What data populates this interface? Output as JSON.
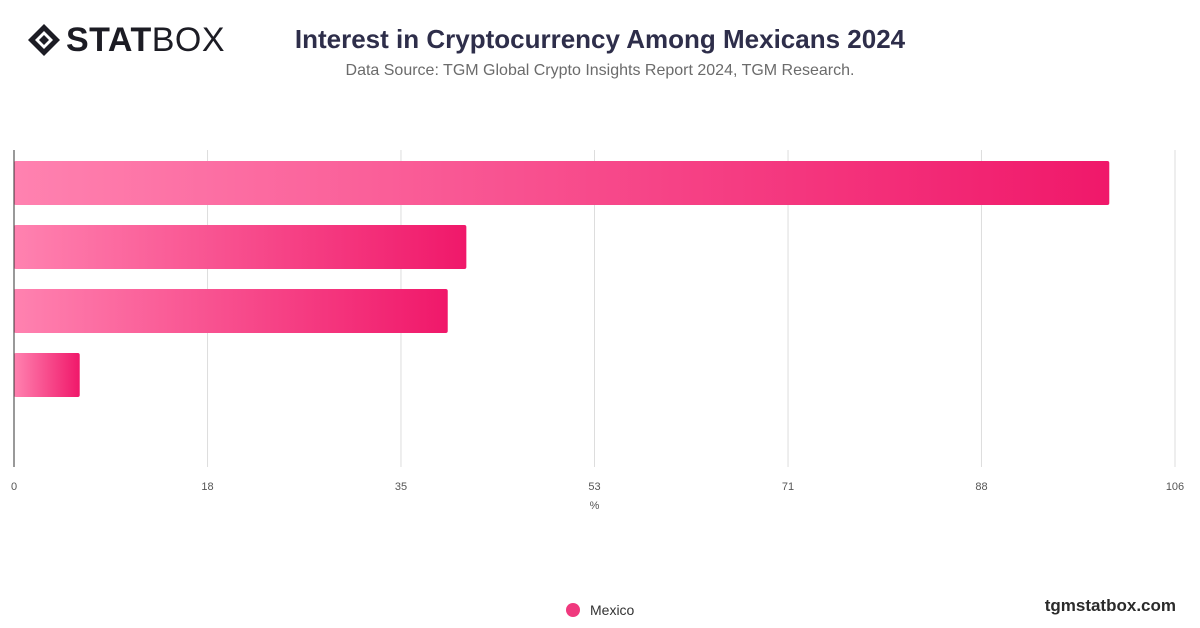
{
  "brand": {
    "logo_bold": "STAT",
    "logo_light": "BOX",
    "watermark": "tgmstatbox.com"
  },
  "colors": {
    "bar_start": "#ff82b0",
    "bar_end": "#f0186a",
    "legend": "#f0397e",
    "grid": "#dddddd",
    "axis": "#333333"
  },
  "chart_data": {
    "type": "bar",
    "orientation": "horizontal",
    "title": "Interest in Cryptocurrency Among Mexicans 2024",
    "subtitle": "Data Source: TGM Global Crypto Insights Report 2024, TGM Research.",
    "xlabel": "%",
    "ylabel": "",
    "xlim": [
      0,
      106
    ],
    "xticks": [
      "0",
      "18",
      "35",
      "53",
      "71",
      "88",
      "106"
    ],
    "tick_values": [
      0,
      17.67,
      35.33,
      53,
      70.67,
      88.33,
      106
    ],
    "categories": [
      "",
      "",
      "",
      ""
    ],
    "series": [
      {
        "name": "Mexico",
        "values": [
          100,
          41.3,
          39.6,
          6
        ]
      }
    ],
    "legend_position": "bottom",
    "grid": true
  }
}
